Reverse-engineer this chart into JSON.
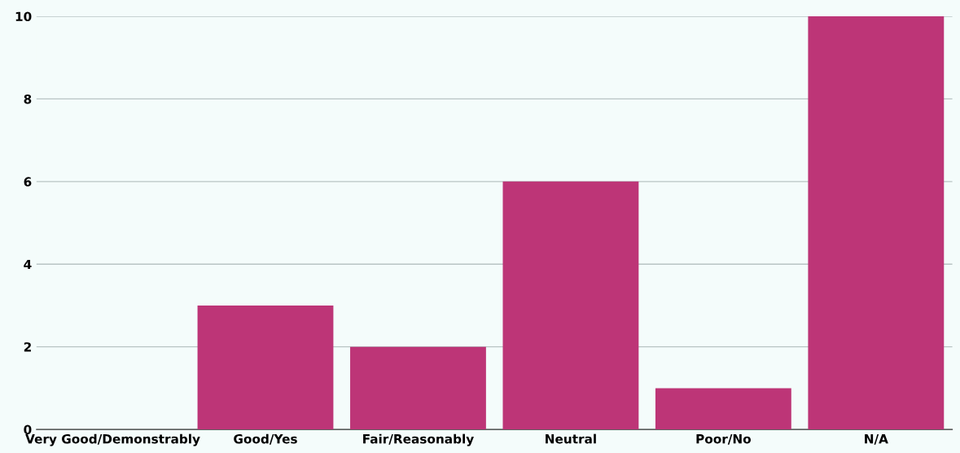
{
  "chart_data": {
    "type": "bar",
    "categories": [
      "Very Good/Demonstrably",
      "Good/Yes",
      "Fair/Reasonably",
      "Neutral",
      "Poor/No",
      "N/A"
    ],
    "values": [
      0,
      3,
      2,
      6,
      1,
      10
    ],
    "color": "#bd3577",
    "ylim": [
      0,
      10
    ],
    "yticks": [
      0,
      2,
      4,
      6,
      8,
      10
    ],
    "grid": "y"
  }
}
